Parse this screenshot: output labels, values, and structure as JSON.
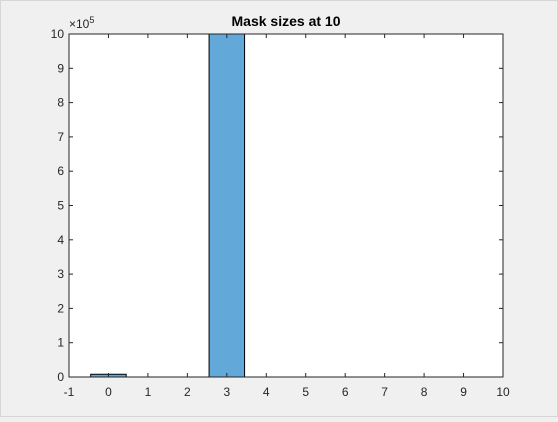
{
  "chart_data": {
    "type": "bar",
    "title": "Mask sizes at 10",
    "xlabel": "",
    "ylabel": "",
    "x": [
      0,
      3
    ],
    "values": [
      8000,
      1000000
    ],
    "bar_width": 0.9,
    "xlim": [
      -1,
      10
    ],
    "ylim": [
      0,
      1000000
    ],
    "xticks": [
      "-1",
      "0",
      "1",
      "2",
      "3",
      "4",
      "5",
      "6",
      "7",
      "8",
      "9",
      "10"
    ],
    "yticks": [
      "0",
      "1",
      "2",
      "3",
      "4",
      "5",
      "6",
      "7",
      "8",
      "9",
      "10"
    ],
    "y_exponent": {
      "base": "×10",
      "power": "5"
    },
    "grid": false,
    "bar_color": "#62a8d8",
    "bar_edge_color": "#000000"
  }
}
